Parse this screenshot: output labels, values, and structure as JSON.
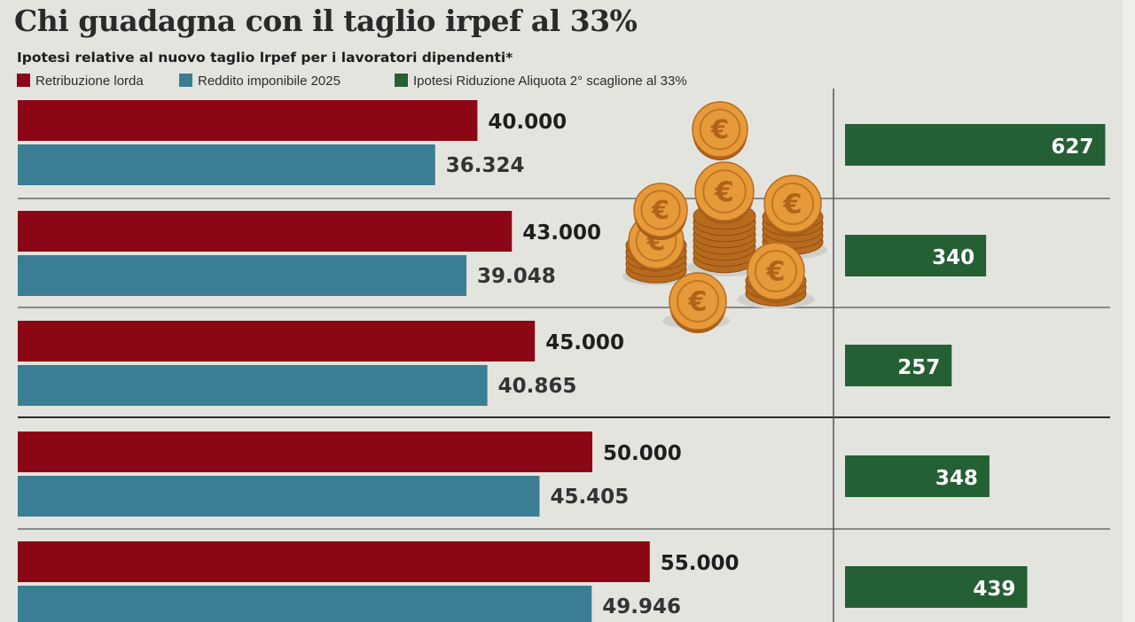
{
  "title": "Chi guadagna con il taglio irpef al 33%",
  "subtitle": "Ipotesi relative al nuovo taglio lrpef per i lavoratori dipendenti*",
  "legend": [
    {
      "label": "Retribuzione lorda",
      "color": "#8b0716"
    },
    {
      "label": "Reddito imponibile 2025",
      "color": "#3b7d92"
    },
    {
      "label": "Ipotesi Riduzione Aliquota 2° scaglione al 33%",
      "color": "#255f34"
    }
  ],
  "chart_data": {
    "type": "bar",
    "orientation": "horizontal",
    "series": [
      {
        "name": "Retribuzione lorda",
        "values": [
          40000,
          43000,
          45000,
          50000,
          55000
        ],
        "labels": [
          "40.000",
          "43.000",
          "45.000",
          "50.000",
          "55.000"
        ]
      },
      {
        "name": "Reddito imponibile 2025",
        "values": [
          36324,
          39048,
          40865,
          45405,
          49946
        ],
        "labels": [
          "36.324",
          "39.048",
          "40.865",
          "45.405",
          "49.946"
        ]
      },
      {
        "name": "Ipotesi Riduzione Aliquota 2° scaglione al 33%",
        "values": [
          627,
          340,
          257,
          348,
          439
        ],
        "labels": [
          "627",
          "340",
          "257",
          "348",
          "439"
        ]
      }
    ],
    "colors": {
      "lorda": "#8b0716",
      "imponibile": "#3b7d92",
      "riduzione": "#255f34"
    },
    "grid": false,
    "legend_position": "top-left",
    "decoration": "euro-coins"
  }
}
